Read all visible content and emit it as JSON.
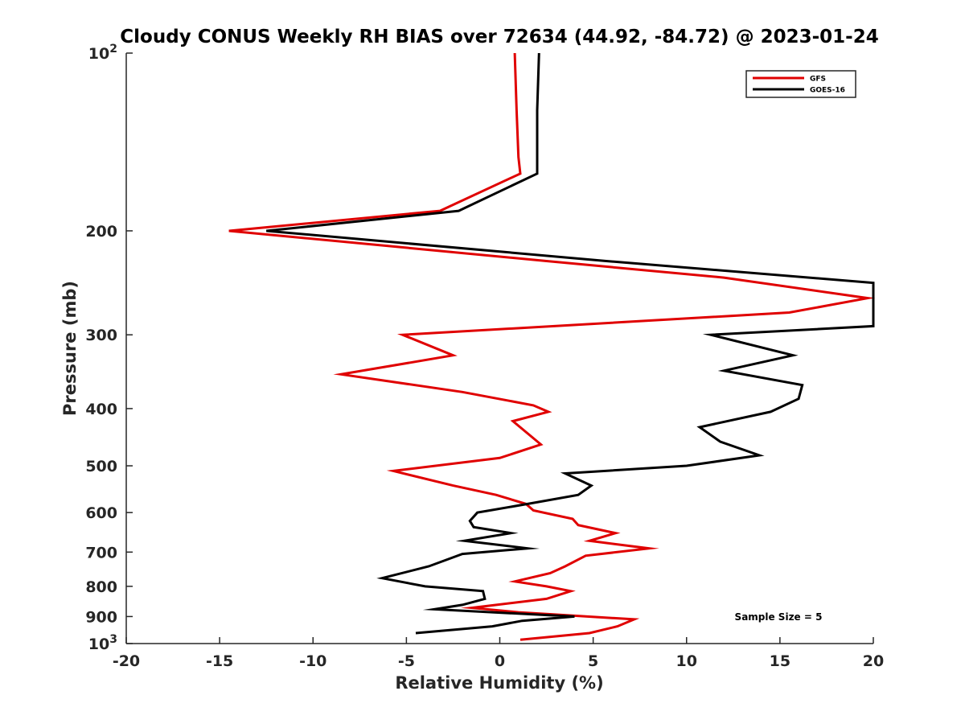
{
  "chart_data": {
    "type": "line",
    "title": "Cloudy CONUS Weekly RH BIAS over 72634 (44.92, -84.72) @ 2023-01-24",
    "xlabel": "Relative Humidity (%)",
    "ylabel": "Pressure (mb)",
    "xlim": [
      -20,
      20
    ],
    "ylim": [
      1000,
      100
    ],
    "yscale": "log",
    "y_reversed": true,
    "grid": false,
    "legend_position": "top-right",
    "x_ticks": [
      "-20",
      "-15",
      "-10",
      "-5",
      "0",
      "5",
      "10",
      "15",
      "20"
    ],
    "y_ticks": [
      {
        "value": 100,
        "base": "10",
        "exp": "2"
      },
      {
        "value": 200,
        "base": "200",
        "exp": ""
      },
      {
        "value": 300,
        "base": "300",
        "exp": ""
      },
      {
        "value": 400,
        "base": "400",
        "exp": ""
      },
      {
        "value": 500,
        "base": "500",
        "exp": ""
      },
      {
        "value": 600,
        "base": "600",
        "exp": ""
      },
      {
        "value": 700,
        "base": "700",
        "exp": ""
      },
      {
        "value": 800,
        "base": "800",
        "exp": ""
      },
      {
        "value": 900,
        "base": "900",
        "exp": ""
      },
      {
        "value": 1000,
        "base": "10",
        "exp": "3"
      }
    ],
    "annotation": "Sample Size = 5",
    "series": [
      {
        "name": "GFS",
        "color": "#e00000",
        "points": [
          [
            0.8,
            100
          ],
          [
            0.9,
            125
          ],
          [
            1.0,
            150
          ],
          [
            1.1,
            160
          ],
          [
            -3.2,
            185
          ],
          [
            -14.5,
            200
          ],
          [
            2.5,
            225
          ],
          [
            12.0,
            240
          ],
          [
            19.7,
            260
          ],
          [
            15.5,
            275
          ],
          [
            -5.2,
            300
          ],
          [
            -2.5,
            325
          ],
          [
            -8.5,
            350
          ],
          [
            -2.0,
            375
          ],
          [
            1.8,
            395
          ],
          [
            2.6,
            405
          ],
          [
            0.7,
            420
          ],
          [
            2.2,
            460
          ],
          [
            0.0,
            485
          ],
          [
            -5.7,
            510
          ],
          [
            -2.5,
            540
          ],
          [
            -0.2,
            560
          ],
          [
            1.4,
            580
          ],
          [
            1.8,
            595
          ],
          [
            3.9,
            615
          ],
          [
            4.2,
            630
          ],
          [
            6.2,
            650
          ],
          [
            4.8,
            670
          ],
          [
            8.0,
            690
          ],
          [
            4.6,
            710
          ],
          [
            3.5,
            740
          ],
          [
            2.7,
            760
          ],
          [
            0.8,
            785
          ],
          [
            2.5,
            800
          ],
          [
            3.8,
            815
          ],
          [
            2.5,
            840
          ],
          [
            -1.5,
            870
          ],
          [
            1.0,
            885
          ],
          [
            7.2,
            910
          ],
          [
            6.3,
            935
          ],
          [
            4.8,
            960
          ],
          [
            1.1,
            985
          ]
        ]
      },
      {
        "name": "GOES-16",
        "color": "#000000",
        "points": [
          [
            2.1,
            100
          ],
          [
            2.0,
            125
          ],
          [
            2.0,
            150
          ],
          [
            2.0,
            160
          ],
          [
            -2.2,
            185
          ],
          [
            -12.5,
            200
          ],
          [
            5.7,
            225
          ],
          [
            20.0,
            245
          ],
          [
            20.0,
            290
          ],
          [
            11.3,
            300
          ],
          [
            15.7,
            325
          ],
          [
            12.0,
            345
          ],
          [
            16.2,
            365
          ],
          [
            16.0,
            385
          ],
          [
            14.5,
            405
          ],
          [
            10.7,
            430
          ],
          [
            11.8,
            455
          ],
          [
            13.9,
            480
          ],
          [
            10.0,
            500
          ],
          [
            3.5,
            515
          ],
          [
            4.9,
            540
          ],
          [
            4.2,
            560
          ],
          [
            1.5,
            580
          ],
          [
            -1.2,
            600
          ],
          [
            -1.6,
            620
          ],
          [
            -1.4,
            635
          ],
          [
            0.6,
            650
          ],
          [
            -1.9,
            670
          ],
          [
            1.5,
            690
          ],
          [
            -2.0,
            705
          ],
          [
            -3.8,
            740
          ],
          [
            -6.3,
            775
          ],
          [
            -4.0,
            800
          ],
          [
            -0.9,
            815
          ],
          [
            -0.8,
            840
          ],
          [
            -2.0,
            860
          ],
          [
            -3.5,
            875
          ],
          [
            4.0,
            900
          ],
          [
            1.2,
            915
          ],
          [
            -0.4,
            935
          ],
          [
            -4.5,
            960
          ]
        ]
      }
    ]
  }
}
